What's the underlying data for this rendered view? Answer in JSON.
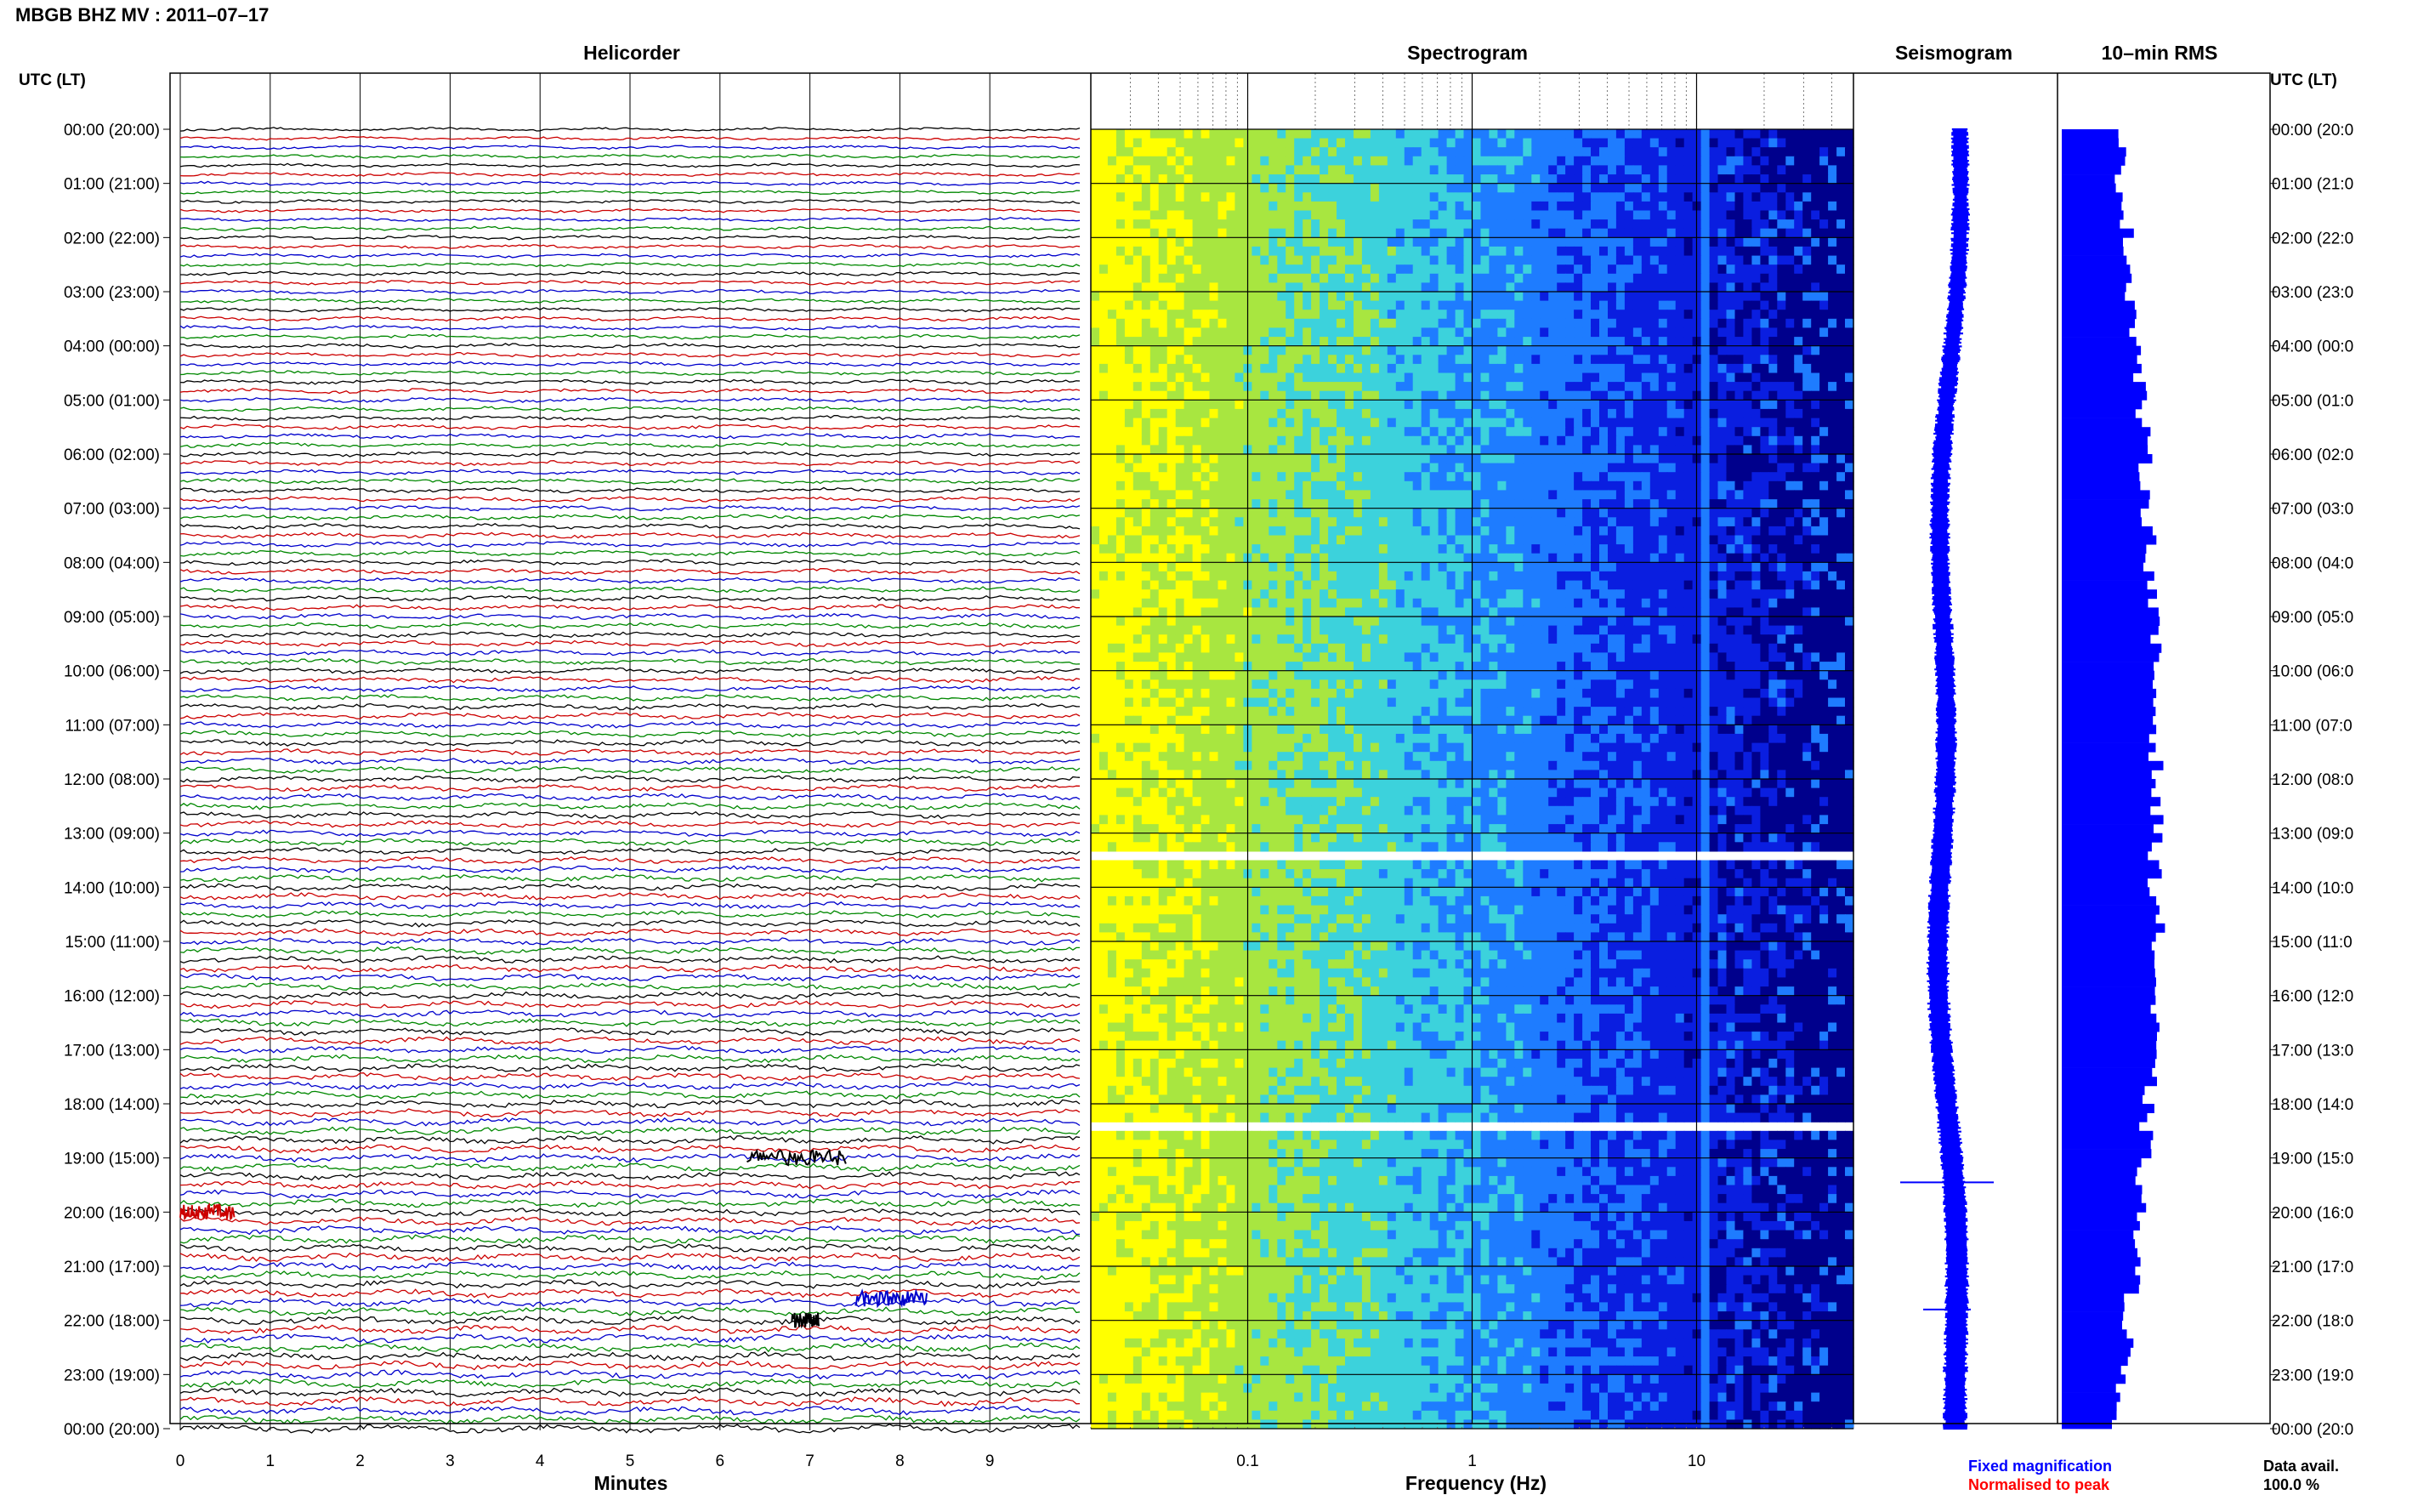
{
  "title": "MBGB BHZ MV : 2011–07–17",
  "utc_header_left": "UTC (LT)",
  "utc_header_right": "UTC (LT)",
  "panels": {
    "helicorder": "Helicorder",
    "spectrogram": "Spectrogram",
    "seismogram": "Seismogram",
    "rms": "10–min RMS"
  },
  "xlabels": {
    "minutes": "Minutes",
    "frequency": "Frequency (Hz)"
  },
  "legend": {
    "fixed": "Fixed magnification",
    "normalised": "Normalised to peak",
    "fixed_color": "#0000ff",
    "normalised_color": "#ff0000"
  },
  "data_avail": {
    "label": "Data avail.",
    "value": "100.0 %"
  },
  "time_labels": [
    "00:00 (20:00)",
    "01:00 (21:00)",
    "02:00 (22:00)",
    "03:00 (23:00)",
    "04:00 (00:00)",
    "05:00 (01:00)",
    "06:00 (02:00)",
    "07:00 (03:00)",
    "08:00 (04:00)",
    "09:00 (05:00)",
    "10:00 (06:00)",
    "11:00 (07:00)",
    "12:00 (08:00)",
    "13:00 (09:00)",
    "14:00 (10:00)",
    "15:00 (11:00)",
    "16:00 (12:00)",
    "17:00 (13:00)",
    "18:00 (14:00)",
    "19:00 (15:00)",
    "20:00 (16:00)",
    "21:00 (17:00)",
    "22:00 (18:00)",
    "23:00 (19:00)",
    "00:00 (20:00)"
  ],
  "time_labels_right": [
    "00:00 (20:0",
    "01:00 (21:0",
    "02:00 (22:0",
    "03:00 (23:0",
    "04:00 (00:0",
    "05:00 (01:0",
    "06:00 (02:0",
    "07:00 (03:0",
    "08:00 (04:0",
    "09:00 (05:0",
    "10:00 (06:0",
    "11:00 (07:0",
    "12:00 (08:0",
    "13:00 (09:0",
    "14:00 (10:0",
    "15:00 (11:0",
    "16:00 (12:0",
    "17:00 (13:0",
    "18:00 (14:0",
    "19:00 (15:0",
    "20:00 (16:0",
    "21:00 (17:0",
    "22:00 (18:0",
    "23:00 (19:0",
    "00:00 (20:0"
  ],
  "chart_data": [
    {
      "type": "line",
      "panel": "helicorder",
      "xlabel": "Minutes",
      "xticks": [
        0,
        1,
        2,
        3,
        4,
        5,
        6,
        7,
        8,
        9
      ],
      "xlim": [
        0,
        10
      ],
      "rows": 144,
      "row_minutes": 10,
      "trace_colors": [
        "#000000",
        "#cc0000",
        "#0000cc",
        "#008800"
      ],
      "events": [
        {
          "hour": 19,
          "minute_start": 6.3,
          "minute_end": 7.4,
          "color": "#000000"
        },
        {
          "hour": 20,
          "minute_start": 0.0,
          "minute_end": 0.6,
          "color": "#cc0000"
        },
        {
          "hour": 21.6,
          "minute_start": 7.5,
          "minute_end": 8.3,
          "color": "#0000cc"
        },
        {
          "hour": 22.0,
          "minute_start": 6.8,
          "minute_end": 7.1,
          "color": "#000000"
        }
      ]
    },
    {
      "type": "heatmap",
      "panel": "spectrogram",
      "xlabel": "Frequency (Hz)",
      "xscale": "log",
      "xticks": [
        0.1,
        1,
        10
      ],
      "xlim": [
        0.02,
        50
      ],
      "colormap": [
        "#ffff00",
        "#a8e640",
        "#3cd2dc",
        "#1e7cff",
        "#0a1ee0",
        "#00008c"
      ],
      "gaps_hours": [
        13.4,
        18.4
      ]
    },
    {
      "type": "line",
      "panel": "seismogram",
      "color": "#0000ff",
      "events_hours": [
        19.45,
        21.8
      ]
    },
    {
      "type": "bar",
      "panel": "rms",
      "color": "#0000ff",
      "interval_minutes": 10,
      "bins": 144
    }
  ]
}
